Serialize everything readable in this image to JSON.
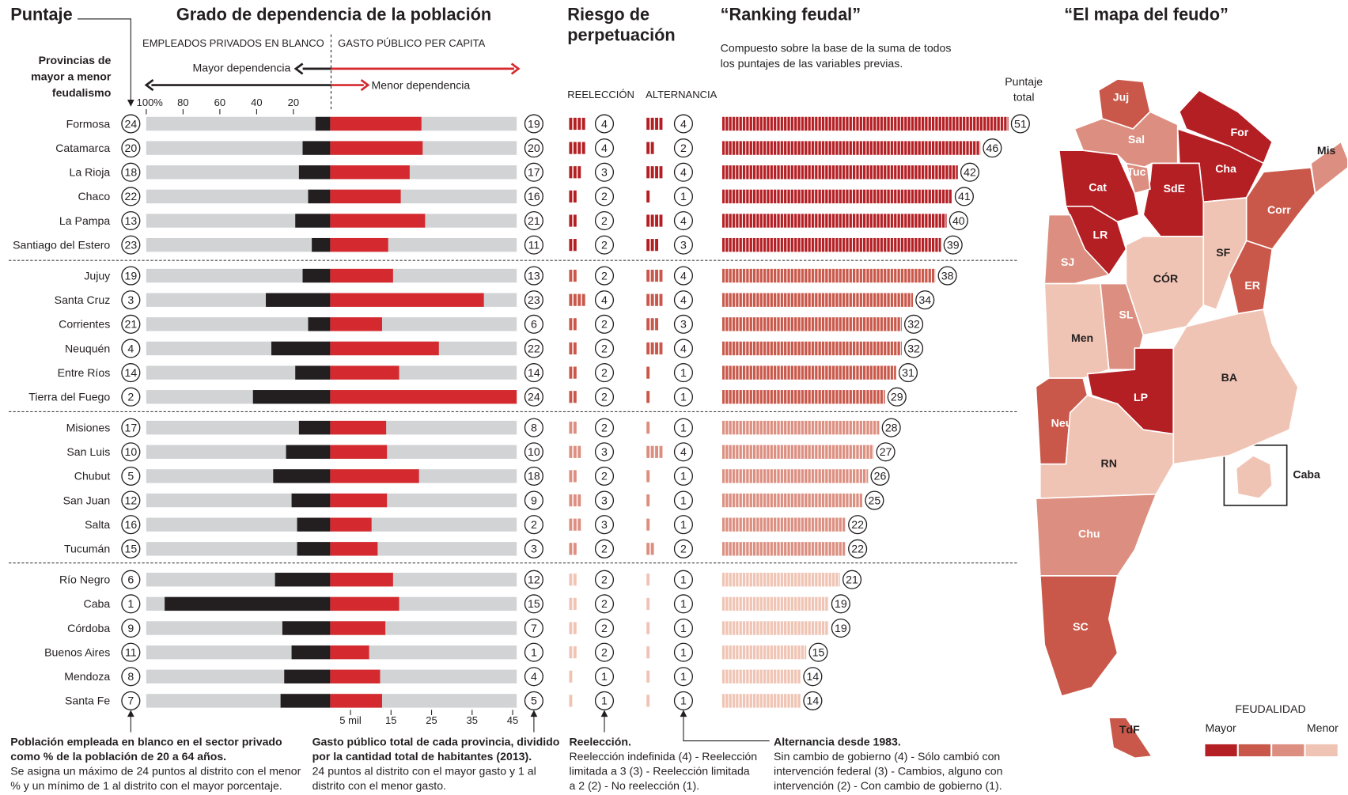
{
  "chart_data": {
    "type": "feudal_ranking",
    "title_puntaje": "Puntaje",
    "title_grado": "Grado de dependencia de la población",
    "title_riesgo": [
      "Riesgo de",
      "perpetuación"
    ],
    "title_ranking": "“Ranking feudal”",
    "title_mapa": "“El mapa del feudo”",
    "label_privados": "EMPLEADOS PRIVADOS EN BLANCO",
    "label_gasto": "GASTO PÚBLICO PER CAPITA",
    "mayor_dependencia": "Mayor dependencia",
    "menor_dependencia": "Menor dependencia",
    "provincias_note": [
      "Provincias de",
      "mayor a menor",
      "feudalismo"
    ],
    "ranking_note": [
      "Compuesto sobre la base de la suma de todos",
      "los puntajes de las variables previas."
    ],
    "puntaje_total": [
      "Puntaje",
      "total"
    ],
    "label_reeleccion": "REELECCIÓN",
    "label_alternancia": "ALTERNANCIA",
    "private_color": "#231f20",
    "spending_color": "#d42a2f",
    "private_axis": {
      "xlim": [
        100,
        0
      ],
      "xticks": [
        {
          "value": 100,
          "label": "100%"
        },
        80,
        60,
        40,
        20
      ]
    },
    "spending_axis": {
      "xlim": [
        0,
        46
      ],
      "xticks": [
        {
          "value": 5,
          "label": "5 mil"
        },
        15,
        25,
        35,
        45
      ]
    },
    "total_axis": {
      "xlim": [
        0,
        51
      ]
    },
    "groups": [
      {
        "color": "#b41f24",
        "rows": [
          {
            "name": "Formosa",
            "puntaje": 24,
            "private": 8,
            "spending": 22.5,
            "gasto_score": 19,
            "reeleccion": 4,
            "alternancia": 4,
            "total": 51
          },
          {
            "name": "Catamarca",
            "puntaje": 20,
            "private": 15,
            "spending": 22.8,
            "gasto_score": 20,
            "reeleccion": 4,
            "alternancia": 2,
            "total": 46
          },
          {
            "name": "La Rioja",
            "puntaje": 18,
            "private": 17,
            "spending": 19.6,
            "gasto_score": 17,
            "reeleccion": 3,
            "alternancia": 4,
            "total": 42
          },
          {
            "name": "Chaco",
            "puntaje": 22,
            "private": 12,
            "spending": 17.4,
            "gasto_score": 16,
            "reeleccion": 2,
            "alternancia": 1,
            "total": 41
          },
          {
            "name": "La Pampa",
            "puntaje": 13,
            "private": 19,
            "spending": 23.4,
            "gasto_score": 21,
            "reeleccion": 2,
            "alternancia": 4,
            "total": 40
          },
          {
            "name": "Santiago del Estero",
            "puntaje": 23,
            "private": 10,
            "spending": 14.3,
            "gasto_score": 11,
            "reeleccion": 2,
            "alternancia": 3,
            "total": 39
          }
        ]
      },
      {
        "color": "#c9584a",
        "rows": [
          {
            "name": "Jujuy",
            "puntaje": 19,
            "private": 15,
            "spending": 15.5,
            "gasto_score": 13,
            "reeleccion": 2,
            "alternancia": 4,
            "total": 38
          },
          {
            "name": "Santa Cruz",
            "puntaje": 3,
            "private": 35,
            "spending": 37.9,
            "gasto_score": 23,
            "reeleccion": 4,
            "alternancia": 4,
            "total": 34
          },
          {
            "name": "Corrientes",
            "puntaje": 21,
            "private": 12,
            "spending": 12.8,
            "gasto_score": 6,
            "reeleccion": 2,
            "alternancia": 3,
            "total": 32
          },
          {
            "name": "Neuquén",
            "puntaje": 4,
            "private": 32,
            "spending": 26.8,
            "gasto_score": 22,
            "reeleccion": 2,
            "alternancia": 4,
            "total": 32
          },
          {
            "name": "Entre Ríos",
            "puntaje": 14,
            "private": 19,
            "spending": 17,
            "gasto_score": 14,
            "reeleccion": 2,
            "alternancia": 1,
            "total": 31
          },
          {
            "name": "Tierra del Fuego",
            "puntaje": 2,
            "private": 42,
            "spending": 46,
            "gasto_score": 24,
            "reeleccion": 2,
            "alternancia": 1,
            "total": 29
          }
        ]
      },
      {
        "color": "#dc8f80",
        "rows": [
          {
            "name": "Misiones",
            "puntaje": 17,
            "private": 17,
            "spending": 13.8,
            "gasto_score": 8,
            "reeleccion": 2,
            "alternancia": 1,
            "total": 28
          },
          {
            "name": "San Luis",
            "puntaje": 10,
            "private": 24,
            "spending": 14,
            "gasto_score": 10,
            "reeleccion": 3,
            "alternancia": 4,
            "total": 27
          },
          {
            "name": "Chubut",
            "puntaje": 5,
            "private": 31,
            "spending": 21.9,
            "gasto_score": 18,
            "reeleccion": 2,
            "alternancia": 1,
            "total": 26
          },
          {
            "name": "San Juan",
            "puntaje": 12,
            "private": 21,
            "spending": 14,
            "gasto_score": 9,
            "reeleccion": 3,
            "alternancia": 1,
            "total": 25
          },
          {
            "name": "Salta",
            "puntaje": 16,
            "private": 18,
            "spending": 10.2,
            "gasto_score": 2,
            "reeleccion": 3,
            "alternancia": 1,
            "total": 22
          },
          {
            "name": "Tucumán",
            "puntaje": 15,
            "private": 18,
            "spending": 11.7,
            "gasto_score": 3,
            "reeleccion": 2,
            "alternancia": 2,
            "total": 22
          }
        ]
      },
      {
        "color": "#f0c4b4",
        "rows": [
          {
            "name": "Río Negro",
            "puntaje": 6,
            "private": 30,
            "spending": 15.5,
            "gasto_score": 12,
            "reeleccion": 2,
            "alternancia": 1,
            "total": 21
          },
          {
            "name": "Caba",
            "puntaje": 1,
            "private": 90,
            "spending": 17,
            "gasto_score": 15,
            "reeleccion": 2,
            "alternancia": 1,
            "total": 19
          },
          {
            "name": "Córdoba",
            "puntaje": 9,
            "private": 26,
            "spending": 13.6,
            "gasto_score": 7,
            "reeleccion": 2,
            "alternancia": 1,
            "total": 19
          },
          {
            "name": "Buenos Aires",
            "puntaje": 11,
            "private": 21,
            "spending": 9.6,
            "gasto_score": 1,
            "reeleccion": 2,
            "alternancia": 1,
            "total": 15
          },
          {
            "name": "Mendoza",
            "puntaje": 8,
            "private": 25,
            "spending": 12.3,
            "gasto_score": 4,
            "reeleccion": 1,
            "alternancia": 1,
            "total": 14
          },
          {
            "name": "Santa Fe",
            "puntaje": 7,
            "private": 27,
            "spending": 12.8,
            "gasto_score": 5,
            "reeleccion": 1,
            "alternancia": 1,
            "total": 14
          }
        ]
      }
    ],
    "notes": [
      {
        "bold": [
          "Población empleada en blanco en el sector privado",
          "como % de la población de 20 a 64 años."
        ],
        "text": [
          "Se asigna un máximo de 24 puntos al distrito con el menor",
          "% y un mínimo de 1 al distrito con el mayor porcentaje."
        ]
      },
      {
        "bold": [
          "Gasto público total de cada provincia, dividido",
          "por la cantidad total de habitantes (2013)."
        ],
        "text": [
          "24 puntos al distrito con el mayor gasto y 1 al",
          "distrito con el menor gasto."
        ]
      },
      {
        "bold": [
          "Reelección."
        ],
        "text": [
          "Reelección indefinida (4) - Reelección",
          "limitada a 3 (3) - Reelección limitada",
          "a 2 (2) - No reelección (1)."
        ]
      },
      {
        "bold": [
          "Alternancia desde 1983."
        ],
        "text": [
          "Sin cambio de gobierno (4) - Sólo cambió con",
          "intervención federal (3) - Cambios, alguno con",
          "intervención (2) - Con cambio de gobierno (1)."
        ]
      }
    ],
    "legend_title": "FEUDALIDAD",
    "legend_high": "Mayor",
    "legend_low": "Menor",
    "map_regions": [
      {
        "label": "Juj",
        "color": "#c9584a"
      },
      {
        "label": "Sal",
        "color": "#dc8f80"
      },
      {
        "label": "For",
        "color": "#b41f24"
      },
      {
        "label": "Cha",
        "color": "#b41f24"
      },
      {
        "label": "Mis",
        "color": "#dc8f80"
      },
      {
        "label": "Corr",
        "color": "#c9584a"
      },
      {
        "label": "SdE",
        "color": "#b41f24"
      },
      {
        "label": "Tuc",
        "color": "#dc8f80"
      },
      {
        "label": "Cat",
        "color": "#b41f24"
      },
      {
        "label": "LR",
        "color": "#b41f24"
      },
      {
        "label": "SJ",
        "color": "#dc8f80"
      },
      {
        "label": "CÓR",
        "color": "#f0c4b4"
      },
      {
        "label": "SF",
        "color": "#f0c4b4"
      },
      {
        "label": "ER",
        "color": "#c9584a"
      },
      {
        "label": "SL",
        "color": "#dc8f80"
      },
      {
        "label": "Men",
        "color": "#f0c4b4"
      },
      {
        "label": "LP",
        "color": "#b41f24"
      },
      {
        "label": "BA",
        "color": "#f0c4b4"
      },
      {
        "label": "Neu",
        "color": "#c9584a"
      },
      {
        "label": "RN",
        "color": "#f0c4b4"
      },
      {
        "label": "Chu",
        "color": "#dc8f80"
      },
      {
        "label": "SC",
        "color": "#c9584a"
      },
      {
        "label": "TdF",
        "color": "#c9584a"
      },
      {
        "label": "Caba",
        "color": "#f0c4b4"
      }
    ]
  }
}
